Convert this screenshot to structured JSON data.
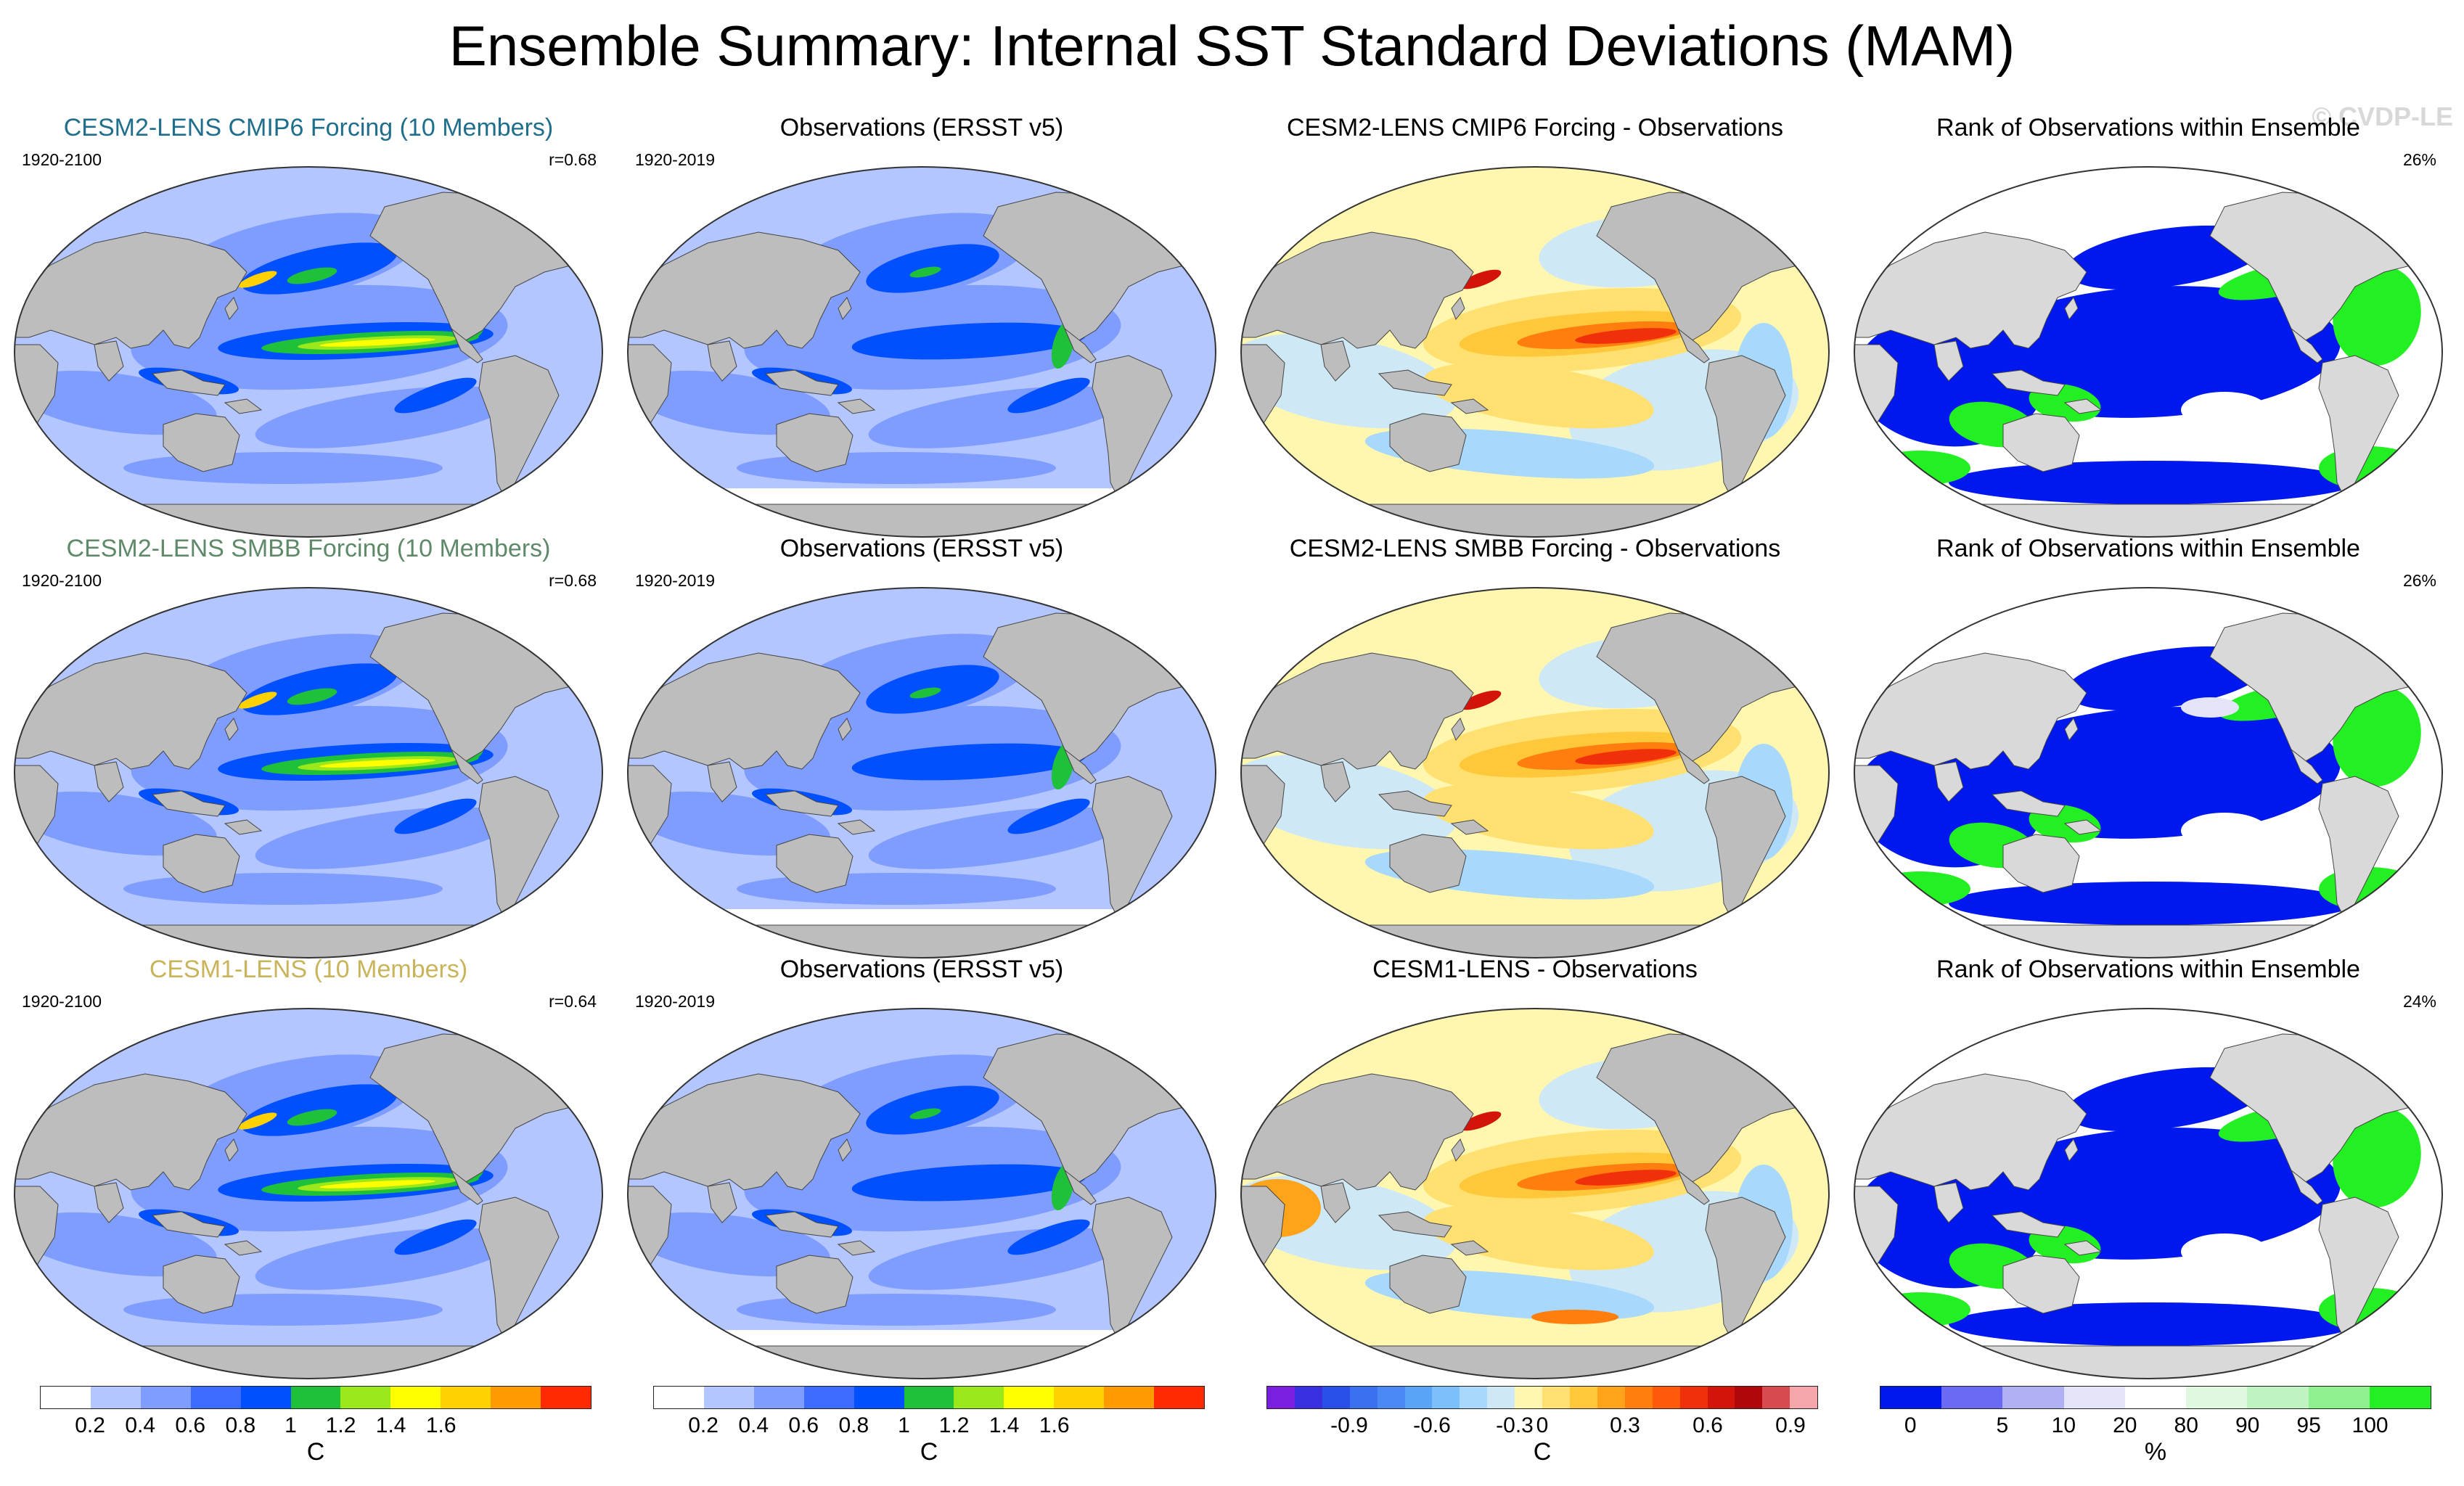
{
  "title": "Ensemble Summary: Internal SST Standard Deviations (MAM)",
  "watermark": "© CVDP-LE",
  "rows": [
    {
      "model": {
        "title": "CESM2-LENS CMIP6 Forcing (10 Members)",
        "title_color": "#1f6e8c",
        "years": "1920-2100",
        "corr": "r=0.68"
      },
      "obs": {
        "title": "Observations (ERSST v5)",
        "years": "1920-2019"
      },
      "diff": {
        "title": "CESM2-LENS CMIP6 Forcing - Observations"
      },
      "rank": {
        "title": "Rank of Observations within Ensemble",
        "pct": "26%"
      }
    },
    {
      "model": {
        "title": "CESM2-LENS SMBB Forcing (10 Members)",
        "title_color": "#5f8a6a",
        "years": "1920-2100",
        "corr": "r=0.68"
      },
      "obs": {
        "title": "Observations (ERSST v5)",
        "years": "1920-2019"
      },
      "diff": {
        "title": "CESM2-LENS SMBB Forcing - Observations"
      },
      "rank": {
        "title": "Rank of Observations within Ensemble",
        "pct": "26%"
      }
    },
    {
      "model": {
        "title": "CESM1-LENS (10 Members)",
        "title_color": "#c9b45a",
        "years": "1920-2100",
        "corr": "r=0.64"
      },
      "obs": {
        "title": "Observations (ERSST v5)",
        "years": "1920-2019"
      },
      "diff": {
        "title": "CESM1-LENS - Observations"
      },
      "rank": {
        "title": "Rank of Observations within Ensemble",
        "pct": "24%"
      }
    }
  ],
  "colorbars": {
    "std": {
      "colors": [
        "#ffffff",
        "#b3c6ff",
        "#7f9cff",
        "#3c6cff",
        "#0050ff",
        "#1fc03a",
        "#9be81a",
        "#ffff00",
        "#ffd100",
        "#ff9a00",
        "#ff2a00"
      ],
      "ticks": [
        "0.2",
        "0.4",
        "0.6",
        "0.8",
        "1",
        "1.2",
        "1.4",
        "1.6"
      ],
      "unit": "C"
    },
    "diff": {
      "colors": [
        "#7a1fe0",
        "#3a2fe0",
        "#2a4fe8",
        "#3a6ff0",
        "#4a88f4",
        "#5aa4f8",
        "#7cc0fb",
        "#a8d8fb",
        "#cfe8f6",
        "#fff7b0",
        "#ffe070",
        "#ffc83a",
        "#ffa31a",
        "#ff7e0e",
        "#ff5a0a",
        "#f0300a",
        "#d2140a",
        "#b0080a",
        "#d64a50",
        "#f4a6aa"
      ],
      "ticks": [
        "-0.9",
        "-0.6",
        "-0.3",
        "0",
        "0.3",
        "0.6",
        "0.9"
      ],
      "unit": "C"
    },
    "rank": {
      "colors": [
        "#0018f0",
        "#6a6af4",
        "#b0b0f4",
        "#e4e4f8",
        "#ffffff",
        "#e0f8e0",
        "#bff3bf",
        "#8ef08e",
        "#22f022"
      ],
      "ticks": [
        "0",
        "5",
        "10",
        "20",
        "80",
        "90",
        "95",
        "100"
      ],
      "unit": "%"
    }
  }
}
